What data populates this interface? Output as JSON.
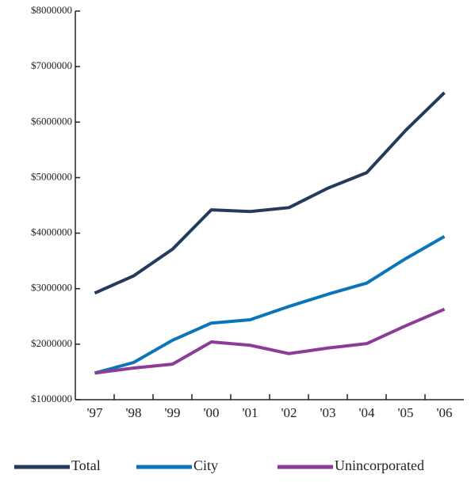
{
  "chart_data": {
    "type": "line",
    "categories": [
      "'97",
      "'98",
      "'99",
      "'00",
      "'01",
      "'02",
      "'03",
      "'04",
      "'05",
      "'06"
    ],
    "series": [
      {
        "name": "Total",
        "color": "#263a5e",
        "values": [
          2920000,
          3230000,
          3710000,
          4420000,
          4390000,
          4460000,
          4810000,
          5090000,
          5850000,
          6530000
        ]
      },
      {
        "name": "City",
        "color": "#0a75b8",
        "values": [
          1480000,
          1670000,
          2070000,
          2380000,
          2440000,
          2680000,
          2900000,
          3100000,
          3540000,
          3940000
        ]
      },
      {
        "name": "Unincorporated",
        "color": "#8c3c96",
        "values": [
          1480000,
          1570000,
          1640000,
          2040000,
          1980000,
          1830000,
          1930000,
          2010000,
          2330000,
          2630000
        ]
      }
    ],
    "ylim": [
      1000000,
      8000000
    ],
    "yticks": [
      {
        "value": 1000000,
        "label": "$1000000"
      },
      {
        "value": 2000000,
        "label": "$2000000"
      },
      {
        "value": 3000000,
        "label": "$3000000"
      },
      {
        "value": 4000000,
        "label": "$4000000"
      },
      {
        "value": 5000000,
        "label": "$5000000"
      },
      {
        "value": 6000000,
        "label": "$6000000"
      },
      {
        "value": 7000000,
        "label": "$7000000"
      },
      {
        "value": 8000000,
        "label": "$8000000"
      }
    ],
    "grid": false
  }
}
